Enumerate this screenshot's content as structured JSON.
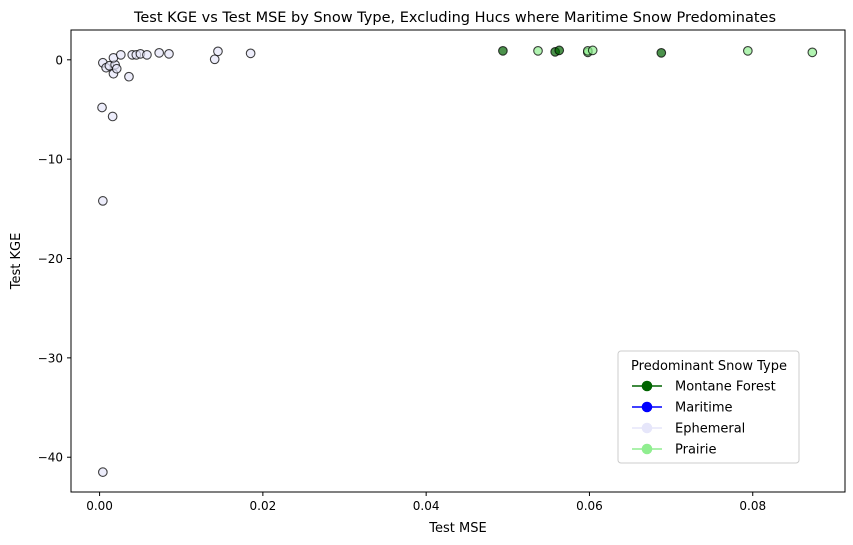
{
  "chart_data": {
    "type": "scatter",
    "title": "Test KGE vs Test MSE by Snow Type, Excluding Hucs where Maritime Snow Predominates",
    "xlabel": "Test MSE",
    "ylabel": "Test KGE",
    "xlim": [
      -0.0035,
      0.0913
    ],
    "ylim": [
      -43.5,
      3.0
    ],
    "x_ticks": [
      0.0,
      0.02,
      0.04,
      0.06,
      0.08
    ],
    "x_tick_labels": [
      "0.00",
      "0.02",
      "0.04",
      "0.06",
      "0.08"
    ],
    "y_ticks": [
      0,
      -10,
      -20,
      -30,
      -40
    ],
    "y_tick_labels": [
      "0",
      "−10",
      "−20",
      "−30",
      "−40"
    ],
    "grid": false,
    "legend": {
      "title": "Predominant Snow Type",
      "placement": "lower-right",
      "entries": [
        {
          "label": "Montane Forest",
          "color": "#006400"
        },
        {
          "label": "Maritime",
          "color": "#0000ff"
        },
        {
          "label": "Ephemeral",
          "color": "#e6e6fa"
        },
        {
          "label": "Prairie",
          "color": "#90ee90"
        }
      ]
    },
    "series": [
      {
        "name": "Montane Forest",
        "color": "#006400",
        "points": [
          [
            0.0494,
            0.9
          ],
          [
            0.0558,
            0.8
          ],
          [
            0.0563,
            0.95
          ],
          [
            0.0688,
            0.7
          ]
        ]
      },
      {
        "name": "Maritime",
        "color": "#0000ff",
        "points": []
      },
      {
        "name": "Ephemeral",
        "color": "#e6e6fa",
        "points": [
          [
            0.0004,
            -41.5
          ],
          [
            0.0004,
            -14.2
          ],
          [
            0.0003,
            -4.8
          ],
          [
            0.0016,
            -5.7
          ],
          [
            0.0004,
            -0.3
          ],
          [
            0.0008,
            -0.8
          ],
          [
            0.0012,
            -0.6
          ],
          [
            0.0017,
            -1.4
          ],
          [
            0.0019,
            -0.5
          ],
          [
            0.0021,
            -0.9
          ],
          [
            0.0017,
            0.2
          ],
          [
            0.0026,
            0.5
          ],
          [
            0.0036,
            -1.7
          ],
          [
            0.004,
            0.5
          ],
          [
            0.0045,
            0.5
          ],
          [
            0.005,
            0.6
          ],
          [
            0.0058,
            0.5
          ],
          [
            0.0073,
            0.7
          ],
          [
            0.0085,
            0.6
          ],
          [
            0.0141,
            0.05
          ],
          [
            0.0145,
            0.85
          ],
          [
            0.0185,
            0.65
          ]
        ]
      },
      {
        "name": "Prairie",
        "color": "#90ee90",
        "points": [
          [
            0.0537,
            0.9
          ],
          [
            0.0598,
            0.75
          ],
          [
            0.0598,
            0.9
          ],
          [
            0.0604,
            0.95
          ],
          [
            0.0794,
            0.9
          ],
          [
            0.0873,
            0.75
          ]
        ]
      }
    ]
  }
}
